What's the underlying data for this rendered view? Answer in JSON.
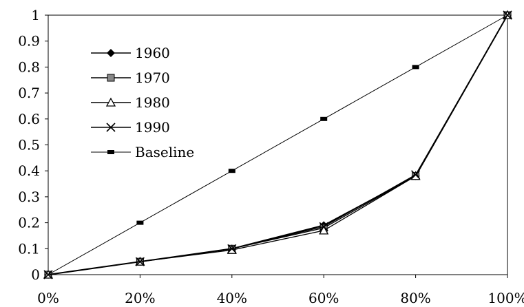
{
  "chart_data": {
    "type": "line",
    "title": "",
    "xlabel": "",
    "ylabel": "",
    "x": [
      0,
      20,
      40,
      60,
      80,
      100
    ],
    "xlim": [
      0,
      100
    ],
    "ylim": [
      0,
      1
    ],
    "x_ticks": [
      0,
      20,
      40,
      60,
      80,
      100
    ],
    "x_tick_labels": [
      "0%",
      "20%",
      "40%",
      "60%",
      "80%",
      "100%"
    ],
    "y_ticks": [
      0,
      0.1,
      0.2,
      0.3,
      0.4,
      0.5,
      0.6,
      0.7,
      0.8,
      0.9,
      1
    ],
    "y_tick_labels": [
      "0",
      "0.1",
      "0.2",
      "0.3",
      "0.4",
      "0.5",
      "0.6",
      "0.7",
      "0.8",
      "0.9",
      "1"
    ],
    "grid": false,
    "legend_position": "top-left",
    "series": [
      {
        "name": "1960",
        "marker": "diamond",
        "color": "#000000",
        "values": [
          0,
          0.05,
          0.1,
          0.19,
          0.38,
          1
        ]
      },
      {
        "name": "1970",
        "marker": "square",
        "color": "#000000",
        "values": [
          0,
          0.05,
          0.1,
          0.18,
          0.38,
          1
        ]
      },
      {
        "name": "1980",
        "marker": "triangle",
        "color": "#000000",
        "values": [
          0,
          0.05,
          0.095,
          0.17,
          0.38,
          1
        ]
      },
      {
        "name": "1990",
        "marker": "x",
        "color": "#000000",
        "values": [
          0,
          0.05,
          0.1,
          0.185,
          0.385,
          1
        ]
      },
      {
        "name": "Baseline",
        "marker": "dash",
        "color": "#000000",
        "values": [
          0,
          0.2,
          0.4,
          0.6,
          0.8,
          1
        ]
      }
    ]
  }
}
